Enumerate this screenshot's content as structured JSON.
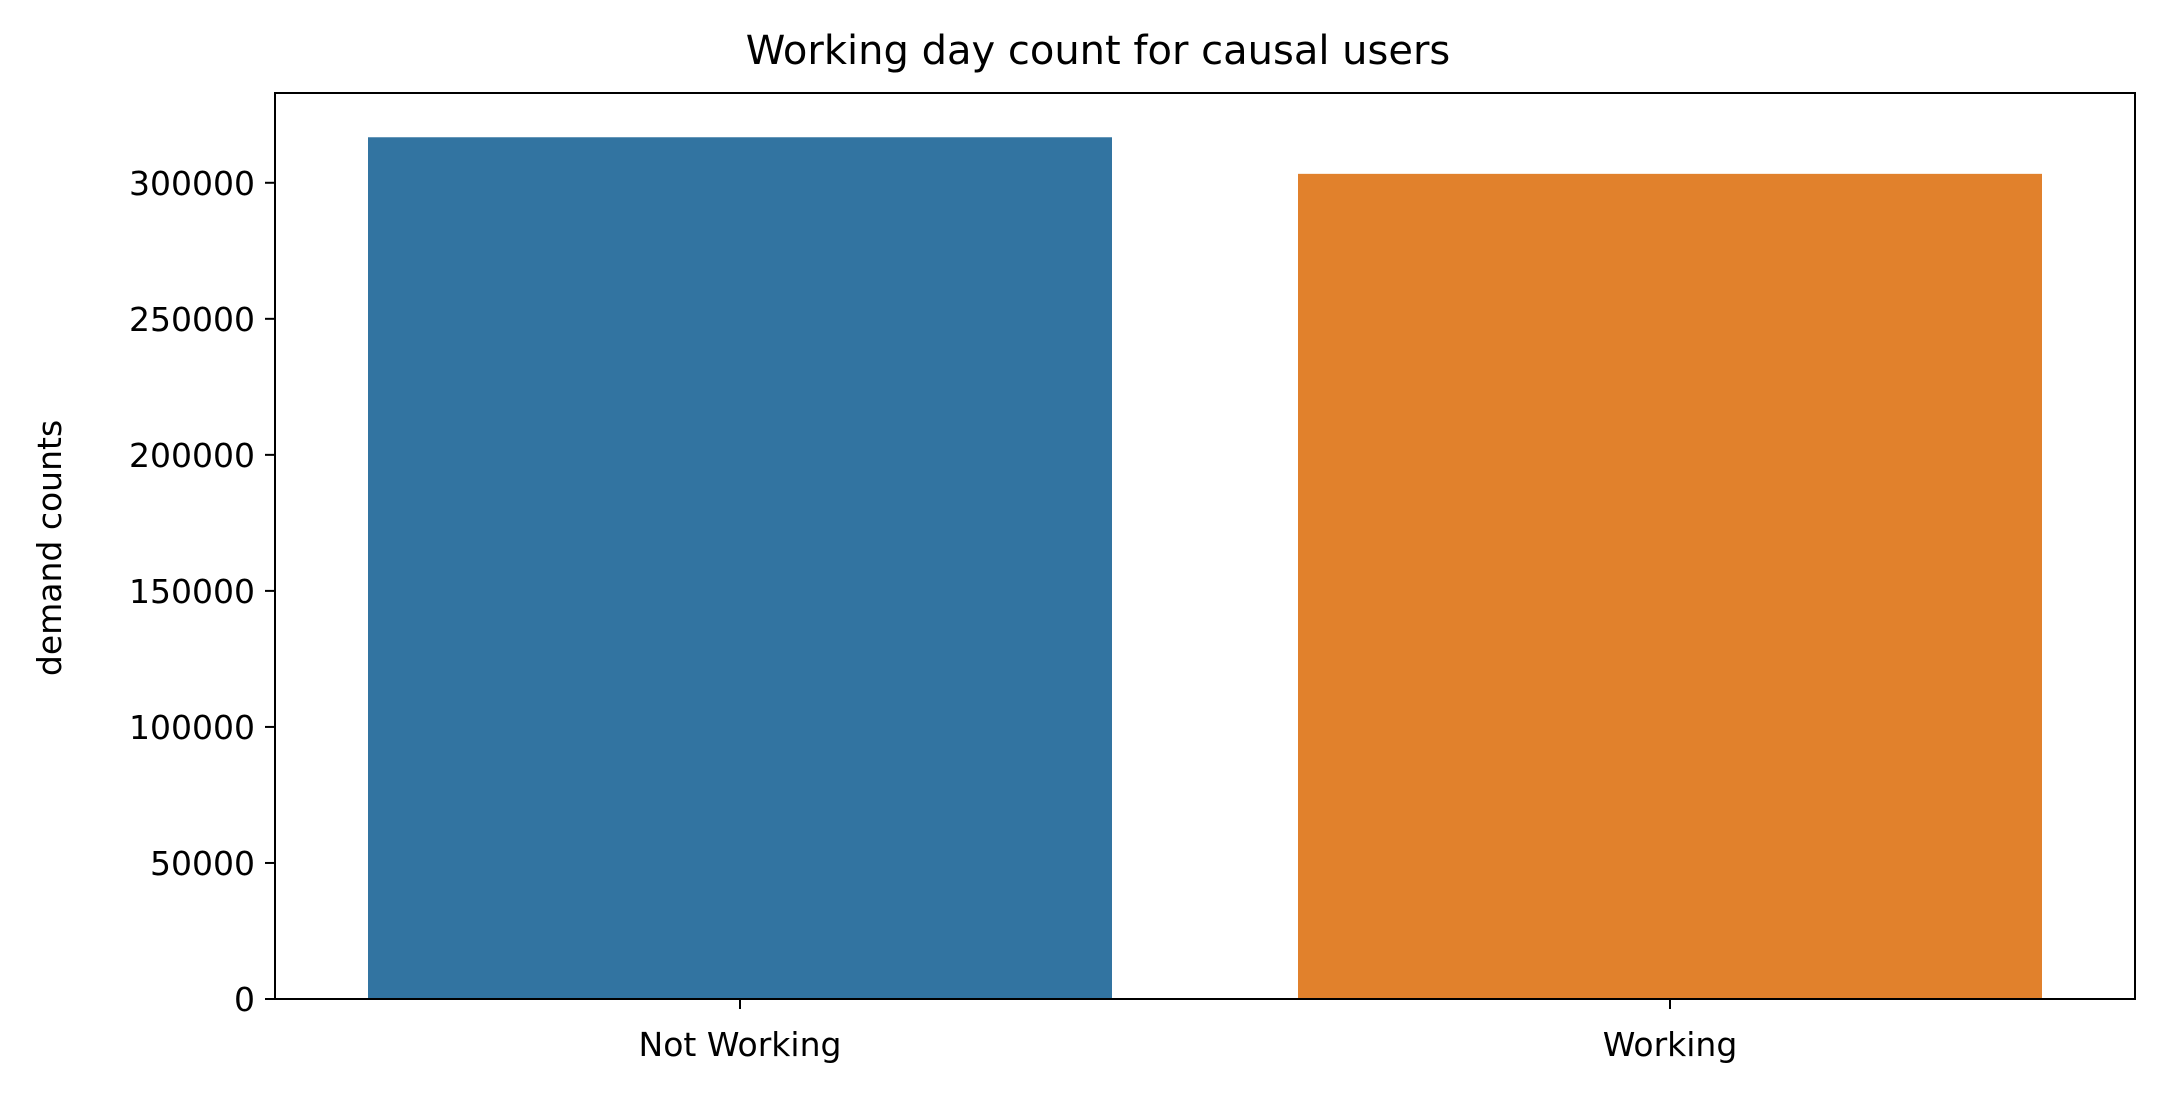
{
  "chart_data": {
    "type": "bar",
    "title": "Working day count for causal users",
    "xlabel": "",
    "ylabel": "demand counts",
    "categories": [
      "Not Working",
      "Working"
    ],
    "values": [
      316732,
      303285
    ],
    "colors": [
      "#3274a1",
      "#e1812c"
    ],
    "ylim": [
      0,
      333000
    ],
    "yticks": [
      0,
      50000,
      100000,
      150000,
      200000,
      250000,
      300000
    ],
    "ytick_labels": [
      "0",
      "50000",
      "100000",
      "150000",
      "200000",
      "250000",
      "300000"
    ],
    "grid": false,
    "legend": "none"
  }
}
